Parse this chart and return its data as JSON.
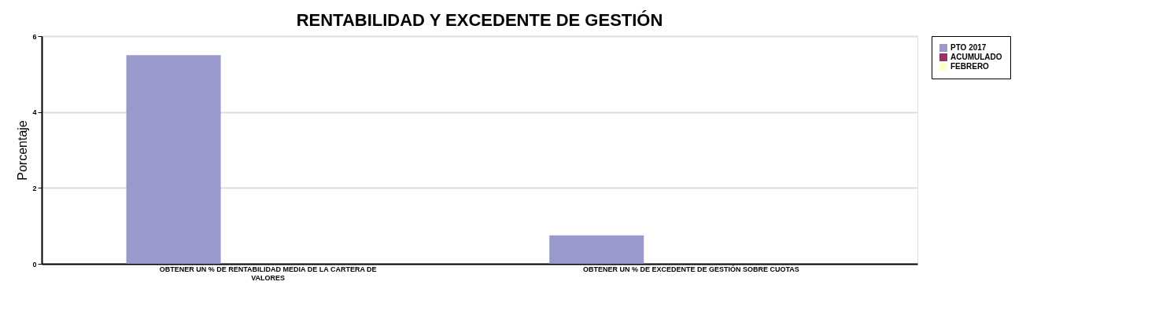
{
  "chart_data": {
    "type": "bar",
    "title": "RENTABILIDAD Y EXCEDENTE DE GESTIÓN",
    "ylabel": "Porcentaje",
    "categories": [
      "OBTENER UN % DE RENTABILIDAD MEDIA DE LA CARTERA DE VALORES",
      "OBTENER UN % DE EXCEDENTE DE GESTIÓN SOBRE CUOTAS"
    ],
    "series": [
      {
        "name": "PTO 2017",
        "color": "#9999cc",
        "values": [
          5.5,
          0.75
        ]
      },
      {
        "name": "ACUMULADO",
        "color": "#993366",
        "values": [
          0,
          0
        ]
      },
      {
        "name": "FEBRERO",
        "color": "#ffffcc",
        "values": [
          0,
          0
        ]
      }
    ],
    "ylim": [
      0,
      6
    ],
    "yticks": [
      0,
      2,
      4,
      6
    ],
    "grid": "y",
    "legend": "right"
  }
}
